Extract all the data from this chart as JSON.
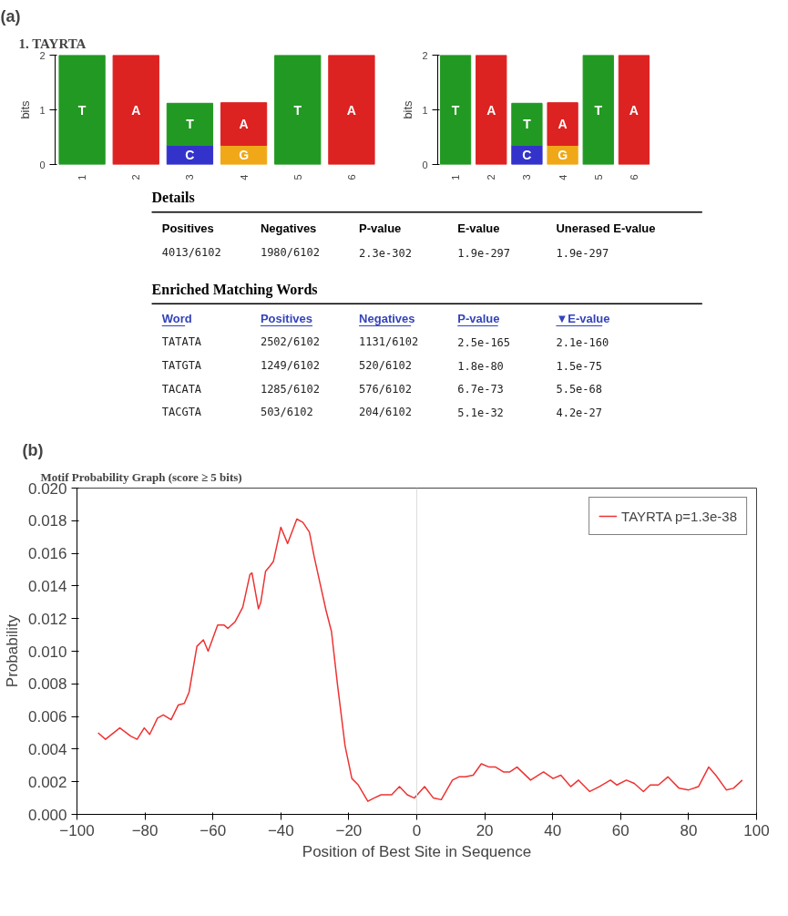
{
  "chart_data": [
    {
      "type": "bar",
      "stacked": true,
      "title": "1. TAYRTA",
      "annotations": [
        "(a)"
      ],
      "ylabel": "bits",
      "categories": [
        "1",
        "2",
        "3",
        "4",
        "5",
        "6"
      ],
      "ylim": [
        0,
        2
      ],
      "yticks": [
        0,
        1,
        2
      ],
      "grid": false,
      "series": [
        {
          "name": "C",
          "color": "#3333cc",
          "values": [
            null,
            null,
            0.35,
            null,
            null,
            null
          ]
        },
        {
          "name": "G",
          "color": "#f0a818",
          "values": [
            null,
            null,
            null,
            0.35,
            null,
            null
          ]
        },
        {
          "name": "T",
          "color": "#229922",
          "values": [
            2,
            null,
            0.77,
            null,
            2,
            null
          ]
        },
        {
          "name": "A",
          "color": "#dd2222",
          "values": [
            null,
            2,
            null,
            0.78,
            null,
            2
          ]
        }
      ]
    },
    {
      "type": "bar",
      "stacked": true,
      "ylabel": "bits",
      "categories": [
        "1",
        "2",
        "3",
        "4",
        "5",
        "6"
      ],
      "ylim": [
        0,
        2
      ],
      "yticks": [
        0,
        1,
        2
      ],
      "grid": false,
      "series": [
        {
          "name": "C",
          "color": "#3333cc",
          "values": [
            null,
            null,
            0.35,
            null,
            null,
            null
          ]
        },
        {
          "name": "G",
          "color": "#f0a818",
          "values": [
            null,
            null,
            null,
            0.35,
            null,
            null
          ]
        },
        {
          "name": "T",
          "color": "#229922",
          "values": [
            2,
            null,
            0.77,
            null,
            2,
            null
          ]
        },
        {
          "name": "A",
          "color": "#dd2222",
          "values": [
            null,
            2,
            null,
            0.78,
            null,
            2
          ]
        }
      ]
    },
    {
      "type": "other",
      "title": "Details",
      "categories": [
        "Positives",
        "Negatives",
        "P-value",
        "E-value",
        "Unerased E-value"
      ],
      "cell_labels": [
        [
          "4013/6102",
          "1980/6102",
          "2.3e-302",
          "1.9e-297",
          "1.9e-297"
        ]
      ]
    },
    {
      "type": "other",
      "title": "Enriched Matching Words",
      "categories": [
        "Word",
        "Positives",
        "Negatives",
        "P-value",
        "▼E-value"
      ],
      "color": "#3344bb",
      "cell_labels": [
        [
          "TATATA",
          "2502/6102",
          "1131/6102",
          "2.5e-165",
          "2.1e-160"
        ],
        [
          "TATGTA",
          "1249/6102",
          "520/6102",
          "1.8e-80",
          "1.5e-75"
        ],
        [
          "TACATA",
          "1285/6102",
          "576/6102",
          "6.7e-73",
          "5.5e-68"
        ],
        [
          "TACGTA",
          "503/6102",
          "204/6102",
          "5.1e-32",
          "4.2e-27"
        ]
      ]
    },
    {
      "type": "line",
      "title": "Motif Probability Graph (score ≥ 5 bits)",
      "annotations": [
        "(b)"
      ],
      "xlabel": "Position of Best Site in Sequence",
      "ylabel": "Probability",
      "xlim": [
        -100,
        100
      ],
      "xticks": [
        -100,
        -80,
        -60,
        -40,
        -20,
        0,
        20,
        40,
        60,
        80,
        100
      ],
      "ylim": [
        0,
        0.02
      ],
      "yticks": [
        {
          "value": 0,
          "label": "0.000"
        },
        {
          "value": 0.002,
          "label": "0.002"
        },
        {
          "value": 0.004,
          "label": "0.004"
        },
        {
          "value": 0.006,
          "label": "0.006"
        },
        {
          "value": 0.008,
          "label": "0.008"
        },
        {
          "value": 0.01,
          "label": "0.010"
        },
        {
          "value": 0.012,
          "label": "0.012"
        },
        {
          "value": 0.014,
          "label": "0.014"
        },
        {
          "value": 0.016,
          "label": "0.016"
        },
        {
          "value": 0.018,
          "label": "0.018"
        },
        {
          "value": 0.02,
          "label": "0.020"
        }
      ],
      "grid": false,
      "legend": "top right",
      "marker": "none",
      "line_style": "solid",
      "ref_lines": [
        {
          "axis": "x",
          "value": 0,
          "color": "#dddddd"
        }
      ],
      "x": [
        -93.8,
        -91.6,
        -87.4,
        -84.2,
        -82.3,
        -80.2,
        -78.6,
        -76.3,
        -74.6,
        -72.3,
        -70.2,
        -68.4,
        -67,
        -64.7,
        -62.8,
        -61.4,
        -58.6,
        -56.7,
        -55.6,
        -53.5,
        -51.2,
        -49.1,
        -48.5,
        -46.6,
        -45.9,
        -44.5,
        -43.3,
        -42.2,
        -40,
        -38,
        -35.3,
        -33.5,
        -31.6,
        -30.2,
        -28.4,
        -26.7,
        -25.1,
        -23.3,
        -21.1,
        -19.1,
        -17.2,
        -14.4,
        -12.6,
        -10.5,
        -7.4,
        -5.1,
        -2.8,
        -0.7,
        2.3,
        4.9,
        7.2,
        10.5,
        12.4,
        14.3,
        16.6,
        19,
        21.3,
        23.2,
        25.5,
        27.4,
        29.5,
        33.5,
        37.3,
        40.1,
        42.4,
        45.3,
        47.6,
        50.9,
        53.7,
        57,
        58.9,
        61.7,
        64,
        66.7,
        68.7,
        71.1,
        73.9,
        77.2,
        80,
        82.9,
        85.9,
        88,
        91.1,
        93.2,
        95.8
      ],
      "series": [
        {
          "name": "TAYRTA p=1.3e-38",
          "color": "#ee3333",
          "values": [
            0.005,
            0.0046,
            0.0053,
            0.0048,
            0.0046,
            0.0053,
            0.0049,
            0.0059,
            0.0061,
            0.0058,
            0.0067,
            0.0068,
            0.0075,
            0.0103,
            0.0107,
            0.01,
            0.0116,
            0.0116,
            0.0114,
            0.0118,
            0.0127,
            0.0147,
            0.0148,
            0.0126,
            0.013,
            0.0149,
            0.0152,
            0.0155,
            0.0176,
            0.0166,
            0.0181,
            0.0179,
            0.0173,
            0.0158,
            0.0141,
            0.0125,
            0.0112,
            0.0079,
            0.0042,
            0.0022,
            0.0018,
            0.0008,
            0.001,
            0.0012,
            0.0012,
            0.0017,
            0.0012,
            0.001,
            0.0017,
            0.001,
            0.0009,
            0.0021,
            0.0023,
            0.0023,
            0.0024,
            0.0031,
            0.0029,
            0.0029,
            0.0026,
            0.0026,
            0.0029,
            0.0021,
            0.0026,
            0.0022,
            0.0024,
            0.0017,
            0.0021,
            0.0014,
            0.0017,
            0.0021,
            0.0018,
            0.0021,
            0.0019,
            0.0014,
            0.0018,
            0.0018,
            0.0023,
            0.0016,
            0.0015,
            0.0017,
            0.0029,
            0.0024,
            0.0015,
            0.0016,
            0.0021
          ]
        }
      ]
    }
  ]
}
